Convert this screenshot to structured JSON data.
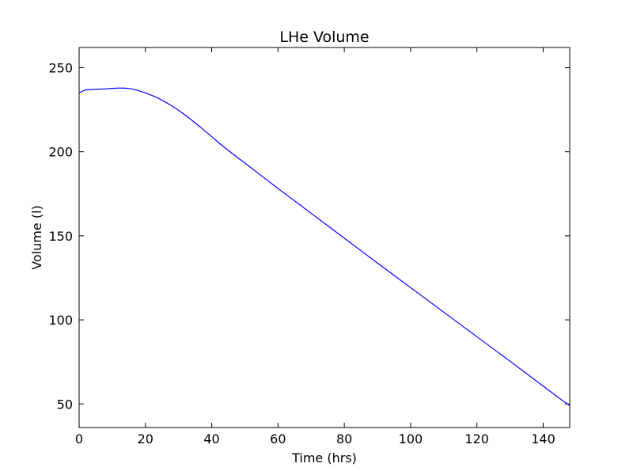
{
  "chart_data": {
    "type": "line",
    "title": "LHe Volume",
    "xlabel": "Time (hrs)",
    "ylabel": "Volume (l)",
    "xlim": [
      0,
      148
    ],
    "ylim": [
      36,
      262
    ],
    "x_ticks": [
      0,
      20,
      40,
      60,
      80,
      100,
      120,
      140
    ],
    "y_ticks": [
      50,
      100,
      150,
      200,
      250
    ],
    "grid": false,
    "line_color": "#0000ff",
    "series": [
      {
        "x": [
          0,
          1,
          2,
          3,
          5,
          8,
          10,
          12,
          14,
          16,
          18,
          20,
          22,
          24,
          26,
          28,
          30,
          32,
          35,
          38,
          40,
          42,
          45,
          48,
          50,
          55,
          60,
          65,
          70,
          75,
          80,
          85,
          90,
          95,
          100,
          105,
          110,
          115,
          120,
          125,
          130,
          135,
          140,
          145,
          148
        ],
        "y": [
          235,
          236,
          236.8,
          237,
          237.1,
          237.4,
          237.7,
          237.9,
          237.8,
          237.3,
          236.3,
          235,
          233.5,
          231.7,
          229.6,
          227.2,
          224.6,
          221.8,
          217.2,
          212.3,
          209,
          205.5,
          200.8,
          196.2,
          193.3,
          185.7,
          178.2,
          170.8,
          163.4,
          156,
          148.6,
          141.2,
          133.8,
          126.5,
          119.2,
          111.9,
          104.6,
          97.3,
          90,
          82.7,
          75.4,
          68,
          60.6,
          53.2,
          49
        ]
      }
    ]
  }
}
